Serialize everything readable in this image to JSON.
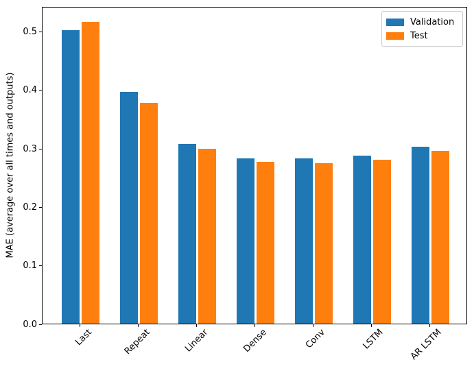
{
  "chart_data": {
    "type": "bar",
    "categories": [
      "Last",
      "Repeat",
      "Linear",
      "Dense",
      "Conv",
      "LSTM",
      "AR LSTM"
    ],
    "series": [
      {
        "name": "Validation",
        "color": "#1f77b4",
        "values": [
          0.502,
          0.396,
          0.307,
          0.283,
          0.282,
          0.287,
          0.303
        ]
      },
      {
        "name": "Test",
        "color": "#ff7f0e",
        "values": [
          0.516,
          0.378,
          0.299,
          0.277,
          0.274,
          0.28,
          0.295
        ]
      }
    ],
    "title": "",
    "xlabel": "",
    "ylabel": "MAE (average over all times and outputs)",
    "ylim": [
      0,
      0.543
    ],
    "yticks": [
      "0.0",
      "0.1",
      "0.2",
      "0.3",
      "0.4",
      "0.5"
    ],
    "ytick_values": [
      0.0,
      0.1,
      0.2,
      0.3,
      0.4,
      0.5
    ],
    "xtick_rotation": 45,
    "bar_width": 0.3,
    "bar_offset": 0.17,
    "grid": false,
    "legend_position": "upper right",
    "axis_color": "#000000",
    "background_color": "#ffffff"
  }
}
